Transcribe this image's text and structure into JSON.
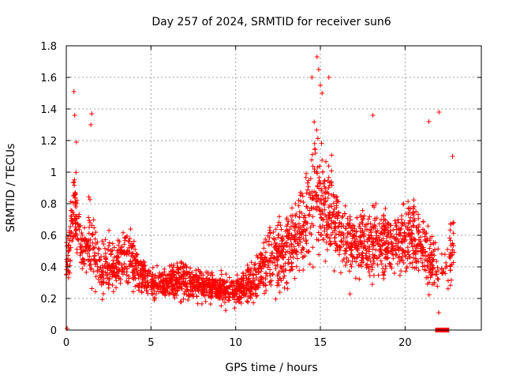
{
  "chart_data": {
    "type": "scatter",
    "title": "Day 257 of 2024, SRMTID for receiver sun6",
    "xlabel": "GPS time / hours",
    "ylabel": "SRMTID / TECUs",
    "xlim": [
      0,
      24.5
    ],
    "ylim": [
      0,
      1.8
    ],
    "x_ticks": [
      0,
      5,
      10,
      15,
      20
    ],
    "x_tick_labels": [
      "0",
      "5",
      "10",
      "15",
      "20"
    ],
    "y_ticks": [
      0,
      0.2,
      0.4,
      0.6,
      0.8,
      1.0,
      1.2,
      1.4,
      1.6,
      1.8
    ],
    "y_tick_labels": [
      "0",
      "0.2",
      "0.4",
      "0.6",
      "0.8",
      "1",
      "1.2",
      "1.4",
      "1.6",
      "1.8"
    ],
    "grid": true,
    "marker": "+",
    "series": [
      {
        "name": "SRMTID",
        "color": "#ff0000",
        "envelope": [
          {
            "t": 0.0,
            "mean": 0.45,
            "spread": 0.35
          },
          {
            "t": 0.5,
            "mean": 0.75,
            "spread": 0.45
          },
          {
            "t": 1.0,
            "mean": 0.5,
            "spread": 0.3
          },
          {
            "t": 1.5,
            "mean": 0.55,
            "spread": 0.4
          },
          {
            "t": 2.0,
            "mean": 0.4,
            "spread": 0.3
          },
          {
            "t": 3.0,
            "mean": 0.4,
            "spread": 0.25
          },
          {
            "t": 3.5,
            "mean": 0.5,
            "spread": 0.3
          },
          {
            "t": 4.0,
            "mean": 0.4,
            "spread": 0.25
          },
          {
            "t": 5.0,
            "mean": 0.3,
            "spread": 0.15
          },
          {
            "t": 6.0,
            "mean": 0.3,
            "spread": 0.15
          },
          {
            "t": 7.0,
            "mean": 0.32,
            "spread": 0.2
          },
          {
            "t": 8.0,
            "mean": 0.28,
            "spread": 0.15
          },
          {
            "t": 9.0,
            "mean": 0.27,
            "spread": 0.15
          },
          {
            "t": 10.0,
            "mean": 0.25,
            "spread": 0.15
          },
          {
            "t": 11.0,
            "mean": 0.3,
            "spread": 0.2
          },
          {
            "t": 12.0,
            "mean": 0.45,
            "spread": 0.3
          },
          {
            "t": 13.0,
            "mean": 0.5,
            "spread": 0.35
          },
          {
            "t": 14.0,
            "mean": 0.65,
            "spread": 0.45
          },
          {
            "t": 14.7,
            "mean": 0.9,
            "spread": 0.65
          },
          {
            "t": 15.5,
            "mean": 0.75,
            "spread": 0.5
          },
          {
            "t": 16.5,
            "mean": 0.55,
            "spread": 0.35
          },
          {
            "t": 17.5,
            "mean": 0.55,
            "spread": 0.35
          },
          {
            "t": 18.5,
            "mean": 0.55,
            "spread": 0.35
          },
          {
            "t": 19.5,
            "mean": 0.55,
            "spread": 0.35
          },
          {
            "t": 20.5,
            "mean": 0.6,
            "spread": 0.4
          },
          {
            "t": 21.5,
            "mean": 0.45,
            "spread": 0.35
          },
          {
            "t": 22.3,
            "mean": 0.35,
            "spread": 0.3
          },
          {
            "t": 22.9,
            "mean": 0.55,
            "spread": 0.35
          }
        ],
        "notable_points": [
          {
            "x": 0.05,
            "y": 0.01
          },
          {
            "x": 0.45,
            "y": 1.51
          },
          {
            "x": 0.5,
            "y": 1.36
          },
          {
            "x": 0.6,
            "y": 1.19
          },
          {
            "x": 1.5,
            "y": 1.37
          },
          {
            "x": 1.45,
            "y": 1.3
          },
          {
            "x": 14.5,
            "y": 1.6
          },
          {
            "x": 14.8,
            "y": 1.73
          },
          {
            "x": 14.9,
            "y": 1.65
          },
          {
            "x": 15.0,
            "y": 1.55
          },
          {
            "x": 15.1,
            "y": 1.5
          },
          {
            "x": 15.5,
            "y": 1.6
          },
          {
            "x": 18.1,
            "y": 1.36
          },
          {
            "x": 21.4,
            "y": 1.32
          },
          {
            "x": 22.0,
            "y": 1.38
          },
          {
            "x": 22.8,
            "y": 1.1
          }
        ],
        "zero_run": {
          "start": 21.8,
          "end": 22.6,
          "value": 0.0
        }
      }
    ]
  }
}
